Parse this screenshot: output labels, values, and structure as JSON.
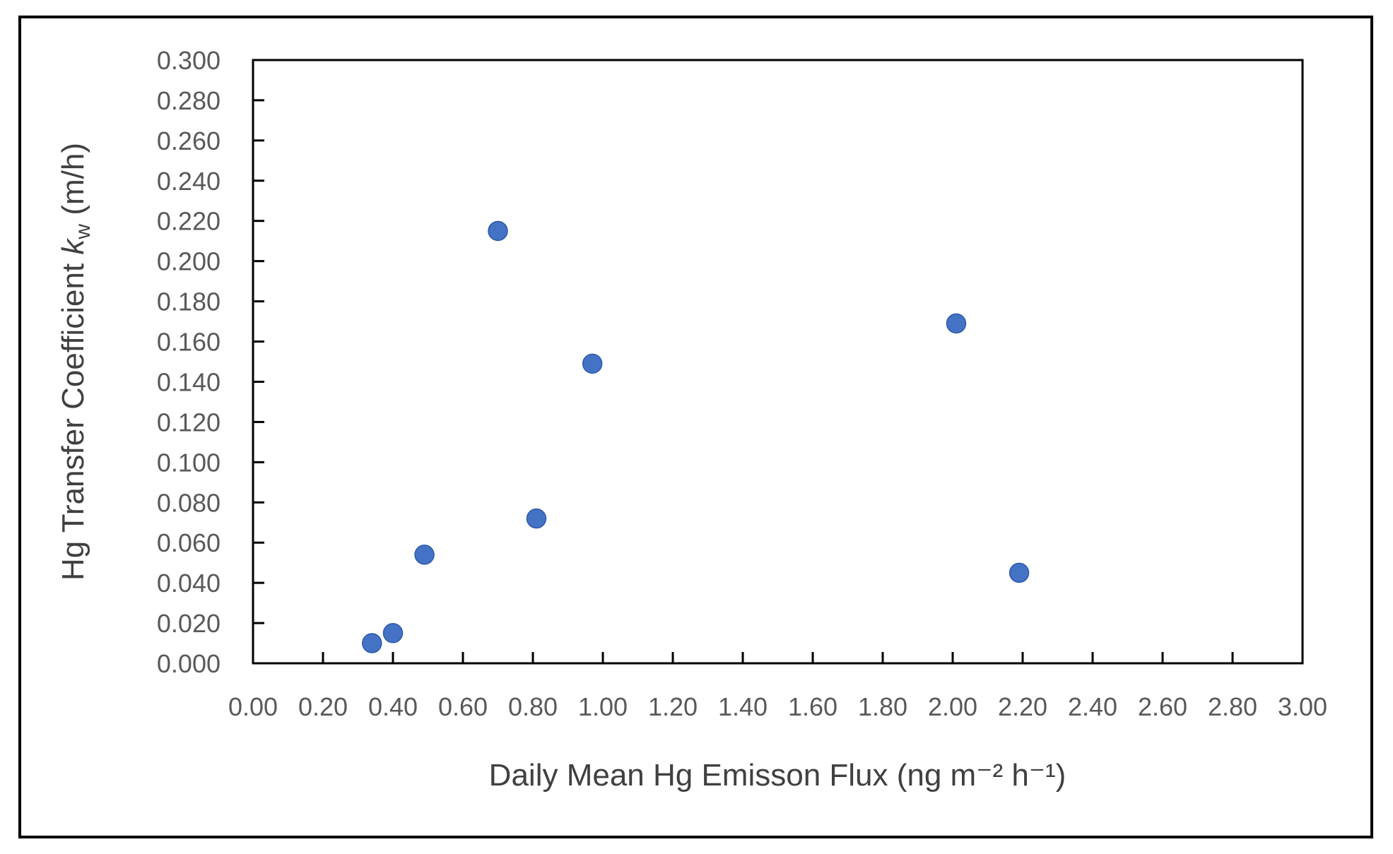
{
  "figure": {
    "background": "#ffffff",
    "outer_border_color": "#000000",
    "plot_frame_color": "#000000"
  },
  "chart_data": {
    "type": "scatter",
    "title": "",
    "xlabel": "Daily Mean Hg Emisson Flux (ng m⁻² h⁻¹)",
    "ylabel_parts": {
      "prefix": "Hg Transfer Coefficient ",
      "k_italic": "k",
      "k_subscript": "w",
      "suffix": " (m/h)"
    },
    "x": [
      0.34,
      0.4,
      0.49,
      0.7,
      0.81,
      0.97,
      2.01,
      2.19
    ],
    "y": [
      0.01,
      0.015,
      0.054,
      0.215,
      0.072,
      0.149,
      0.169,
      0.045
    ],
    "xlim": [
      0.0,
      3.0
    ],
    "ylim": [
      0.0,
      0.3
    ],
    "x_tick_labels": [
      "0.00",
      "0.20",
      "0.40",
      "0.60",
      "0.80",
      "1.00",
      "1.20",
      "1.40",
      "1.60",
      "1.80",
      "2.00",
      "2.20",
      "2.40",
      "2.60",
      "2.80",
      "3.00"
    ],
    "y_tick_labels": [
      "0.000",
      "0.020",
      "0.040",
      "0.060",
      "0.080",
      "0.100",
      "0.120",
      "0.140",
      "0.160",
      "0.180",
      "0.200",
      "0.220",
      "0.240",
      "0.260",
      "0.280",
      "0.300"
    ],
    "grid": false,
    "legend": false,
    "marker_color": "#4472C4",
    "marker_edge_color": "#2E59A8",
    "tick_label_color": "#595959",
    "axis_title_color": "#404040"
  }
}
